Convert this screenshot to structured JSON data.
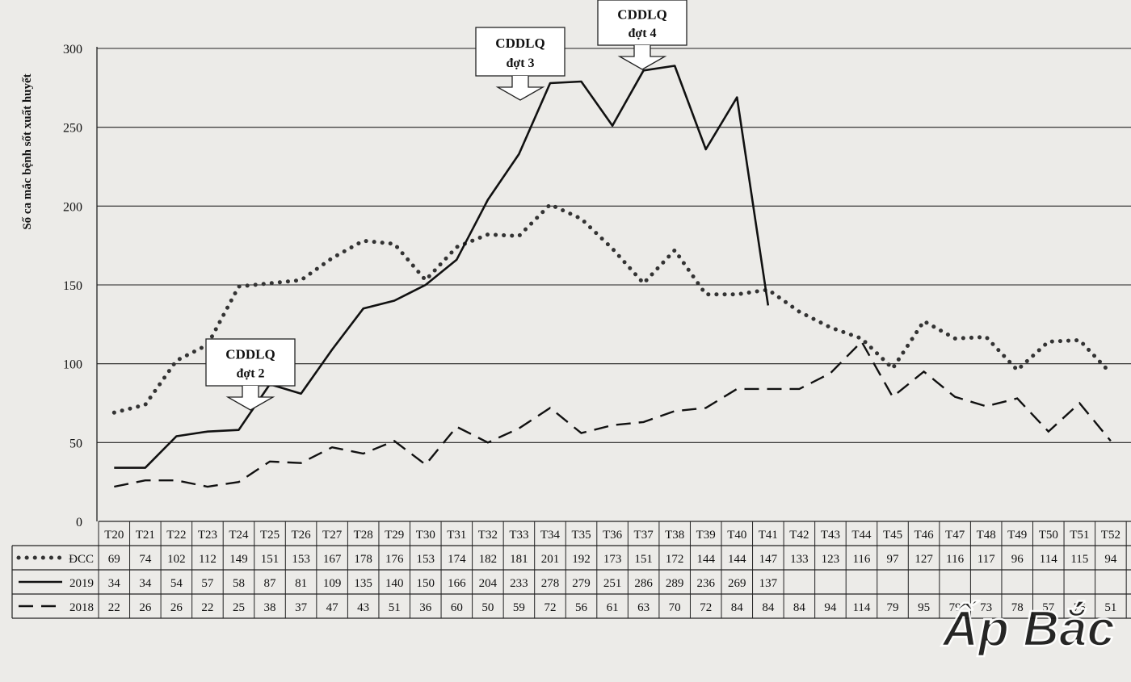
{
  "chart_data": {
    "type": "line",
    "title": "",
    "xlabel": "",
    "ylabel": "Số ca mắc bệnh sốt xuất huyết",
    "ylim": [
      0,
      300
    ],
    "yticks": [
      0,
      50,
      100,
      150,
      200,
      250,
      300
    ],
    "grid": true,
    "legend_placement": "table-left",
    "categories": [
      "T20",
      "T21",
      "T22",
      "T23",
      "T24",
      "T25",
      "T26",
      "T27",
      "T28",
      "T29",
      "T30",
      "T31",
      "T32",
      "T33",
      "T34",
      "T35",
      "T36",
      "T37",
      "T38",
      "T39",
      "T40",
      "T41",
      "T42",
      "T43",
      "T44",
      "T45",
      "T46",
      "T47",
      "T48",
      "T49",
      "T50",
      "T51",
      "T52"
    ],
    "series": [
      {
        "name": "ĐCC",
        "style": "dotted",
        "values": [
          69,
          74,
          102,
          112,
          149,
          151,
          153,
          167,
          178,
          176,
          153,
          174,
          182,
          181,
          201,
          192,
          173,
          151,
          172,
          144,
          144,
          147,
          133,
          123,
          116,
          97,
          127,
          116,
          117,
          96,
          114,
          115,
          94
        ]
      },
      {
        "name": "2019",
        "style": "solid",
        "values": [
          34,
          34,
          54,
          57,
          58,
          87,
          81,
          109,
          135,
          140,
          150,
          166,
          204,
          233,
          278,
          279,
          251,
          286,
          289,
          236,
          269,
          137,
          null,
          null,
          null,
          null,
          null,
          null,
          null,
          null,
          null,
          null,
          null
        ]
      },
      {
        "name": "2018",
        "style": "dashed",
        "values": [
          22,
          26,
          26,
          22,
          25,
          38,
          37,
          47,
          43,
          51,
          36,
          60,
          50,
          59,
          72,
          56,
          61,
          63,
          70,
          72,
          84,
          84,
          84,
          94,
          114,
          79,
          95,
          79,
          73,
          78,
          57,
          75,
          51
        ]
      }
    ],
    "annotations": [
      {
        "line1": "CDDLQ",
        "line2": "đợt 2",
        "week": "T25"
      },
      {
        "line1": "CDDLQ",
        "line2": "đợt 3",
        "week": "T33"
      },
      {
        "line1": "CDDLQ",
        "line2": "đợt 4",
        "week": "T37"
      }
    ]
  },
  "watermark": {
    "text": "Ấp Bắc"
  }
}
